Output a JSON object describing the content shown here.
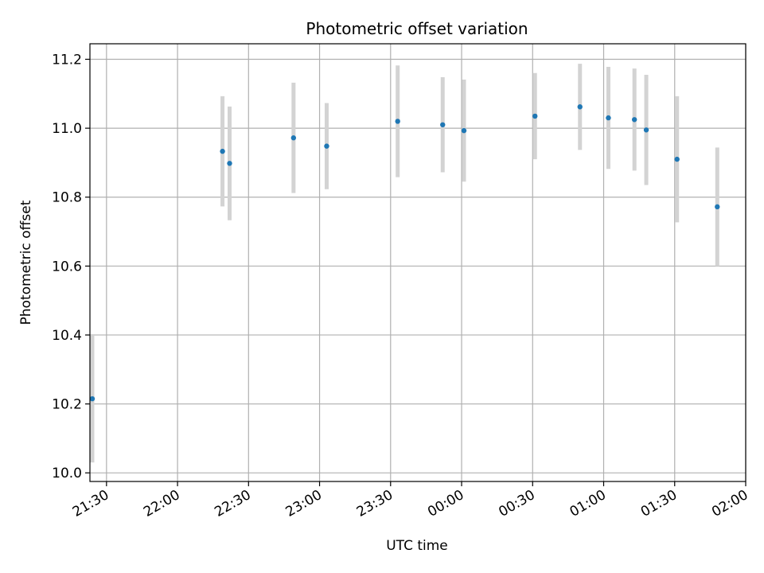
{
  "chart_data": {
    "type": "scatter",
    "title": "Photometric offset variation",
    "xlabel": "UTC time",
    "ylabel": "Photometric offset",
    "x_ticks": [
      "21:30",
      "22:00",
      "22:30",
      "23:00",
      "23:30",
      "00:00",
      "00:30",
      "01:00",
      "01:30",
      "02:00"
    ],
    "y_ticks": [
      "10.0",
      "10.2",
      "10.4",
      "10.6",
      "10.8",
      "11.0",
      "11.2"
    ],
    "x_range": [
      "21:23",
      "02:00"
    ],
    "ylim": [
      9.975,
      11.245
    ],
    "grid": true,
    "point_color": "#1f77b4",
    "errorbar_color": "#d3d3d3",
    "points": [
      {
        "x": "21:24",
        "y": 10.215,
        "err": 0.185
      },
      {
        "x": "22:19",
        "y": 10.933,
        "err": 0.16
      },
      {
        "x": "22:22",
        "y": 10.898,
        "err": 0.165
      },
      {
        "x": "22:49",
        "y": 10.972,
        "err": 0.16
      },
      {
        "x": "23:03",
        "y": 10.948,
        "err": 0.125
      },
      {
        "x": "23:33",
        "y": 11.02,
        "err": 0.162
      },
      {
        "x": "23:52",
        "y": 11.01,
        "err": 0.138
      },
      {
        "x": "00:01",
        "y": 10.993,
        "err": 0.148
      },
      {
        "x": "00:31",
        "y": 11.035,
        "err": 0.125
      },
      {
        "x": "00:50",
        "y": 11.062,
        "err": 0.125
      },
      {
        "x": "01:02",
        "y": 11.03,
        "err": 0.148
      },
      {
        "x": "01:13",
        "y": 11.025,
        "err": 0.148
      },
      {
        "x": "01:18",
        "y": 10.995,
        "err": 0.16
      },
      {
        "x": "01:31",
        "y": 10.91,
        "err": 0.183
      },
      {
        "x": "01:48",
        "y": 10.772,
        "err": 0.172
      }
    ]
  }
}
